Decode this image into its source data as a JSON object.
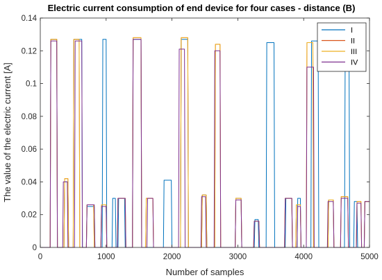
{
  "chart_data": {
    "type": "line",
    "title": "Electric current consumption of end device for four cases - distance (B)",
    "xlabel": "Number of samples",
    "ylabel": "The value of the electric current [A]",
    "xlim": [
      0,
      5000
    ],
    "ylim": [
      0,
      0.14
    ],
    "xticks": [
      0,
      1000,
      2000,
      3000,
      4000,
      5000
    ],
    "yticks": [
      0,
      0.02,
      0.04,
      0.06,
      0.08,
      0.1,
      0.12,
      0.14
    ],
    "xtick_labels": [
      "0",
      "1000",
      "2000",
      "3000",
      "4000",
      "5000"
    ],
    "ytick_labels": [
      "0",
      "0.02",
      "0.04",
      "0.06",
      "0.08",
      "0.1",
      "0.12",
      "0.14"
    ],
    "grid": false,
    "legend_position": "top-right",
    "series": [
      {
        "name": "I",
        "color": "#0072BD",
        "pulses": [
          [
            150,
            260,
            0.127
          ],
          [
            360,
            430,
            0.04
          ],
          [
            500,
            640,
            0.127
          ],
          [
            700,
            830,
            0.025
          ],
          [
            940,
            1010,
            0.127
          ],
          [
            1090,
            1150,
            0.03
          ],
          [
            1180,
            1290,
            0.03
          ],
          [
            1400,
            1540,
            0.127
          ],
          [
            1870,
            2000,
            0.041
          ],
          [
            2130,
            2250,
            0.127
          ],
          [
            2450,
            2530,
            0.032
          ],
          [
            2960,
            3060,
            0.03
          ],
          [
            3250,
            3320,
            0.017
          ],
          [
            3430,
            3560,
            0.125
          ],
          [
            3720,
            3830,
            0.03
          ],
          [
            3900,
            3960,
            0.03
          ],
          [
            4110,
            4230,
            0.126
          ],
          [
            4370,
            4460,
            0.029
          ],
          [
            4620,
            4700,
            0.11
          ],
          [
            4760,
            4820,
            0.028
          ],
          [
            4920,
            5000,
            0.028
          ]
        ]
      },
      {
        "name": "II",
        "color": "#D95319",
        "pulses": [
          [
            150,
            260,
            0.127
          ],
          [
            360,
            430,
            0.042
          ],
          [
            500,
            600,
            0.127
          ],
          [
            700,
            820,
            0.026
          ],
          [
            920,
            1010,
            0.026
          ],
          [
            1170,
            1300,
            0.03
          ],
          [
            1400,
            1540,
            0.128
          ],
          [
            1600,
            1720,
            0.03
          ],
          [
            2130,
            2250,
            0.128
          ],
          [
            2450,
            2530,
            0.032
          ],
          [
            2650,
            2740,
            0.124
          ],
          [
            2960,
            3060,
            0.03
          ],
          [
            3240,
            3330,
            0.016
          ],
          [
            3710,
            3830,
            0.03
          ],
          [
            3880,
            3960,
            0.026
          ],
          [
            4040,
            4150,
            0.125
          ],
          [
            4370,
            4460,
            0.029
          ],
          [
            4560,
            4680,
            0.031
          ],
          [
            4800,
            4880,
            0.028
          ],
          [
            4920,
            5000,
            0.028
          ]
        ]
      },
      {
        "name": "III",
        "color": "#EDB120",
        "pulses": [
          [
            150,
            260,
            0.127
          ],
          [
            360,
            430,
            0.042
          ],
          [
            500,
            600,
            0.127
          ],
          [
            700,
            820,
            0.026
          ],
          [
            920,
            1010,
            0.026
          ],
          [
            1170,
            1300,
            0.03
          ],
          [
            1400,
            1540,
            0.128
          ],
          [
            1600,
            1720,
            0.03
          ],
          [
            2130,
            2250,
            0.128
          ],
          [
            2450,
            2530,
            0.032
          ],
          [
            2650,
            2740,
            0.124
          ],
          [
            2960,
            3060,
            0.03
          ],
          [
            3240,
            3330,
            0.016
          ],
          [
            3710,
            3830,
            0.03
          ],
          [
            3880,
            3960,
            0.026
          ],
          [
            4040,
            4150,
            0.125
          ],
          [
            4370,
            4460,
            0.029
          ],
          [
            4560,
            4680,
            0.031
          ],
          [
            4800,
            4880,
            0.028
          ],
          [
            4920,
            5000,
            0.028
          ]
        ]
      },
      {
        "name": "IV",
        "color": "#7E2F8E",
        "pulses": [
          [
            150,
            260,
            0.126
          ],
          [
            340,
            420,
            0.04
          ],
          [
            520,
            640,
            0.126
          ],
          [
            700,
            830,
            0.026
          ],
          [
            920,
            1010,
            0.025
          ],
          [
            1170,
            1300,
            0.03
          ],
          [
            1400,
            1540,
            0.127
          ],
          [
            1620,
            1720,
            0.03
          ],
          [
            2100,
            2200,
            0.121
          ],
          [
            2440,
            2520,
            0.031
          ],
          [
            2640,
            2740,
            0.12
          ],
          [
            2960,
            3060,
            0.029
          ],
          [
            3240,
            3330,
            0.016
          ],
          [
            3710,
            3830,
            0.03
          ],
          [
            3900,
            3960,
            0.025
          ],
          [
            4040,
            4160,
            0.11
          ],
          [
            4360,
            4460,
            0.028
          ],
          [
            4560,
            4680,
            0.03
          ],
          [
            4800,
            4880,
            0.027
          ],
          [
            4920,
            5000,
            0.028
          ]
        ]
      }
    ]
  }
}
